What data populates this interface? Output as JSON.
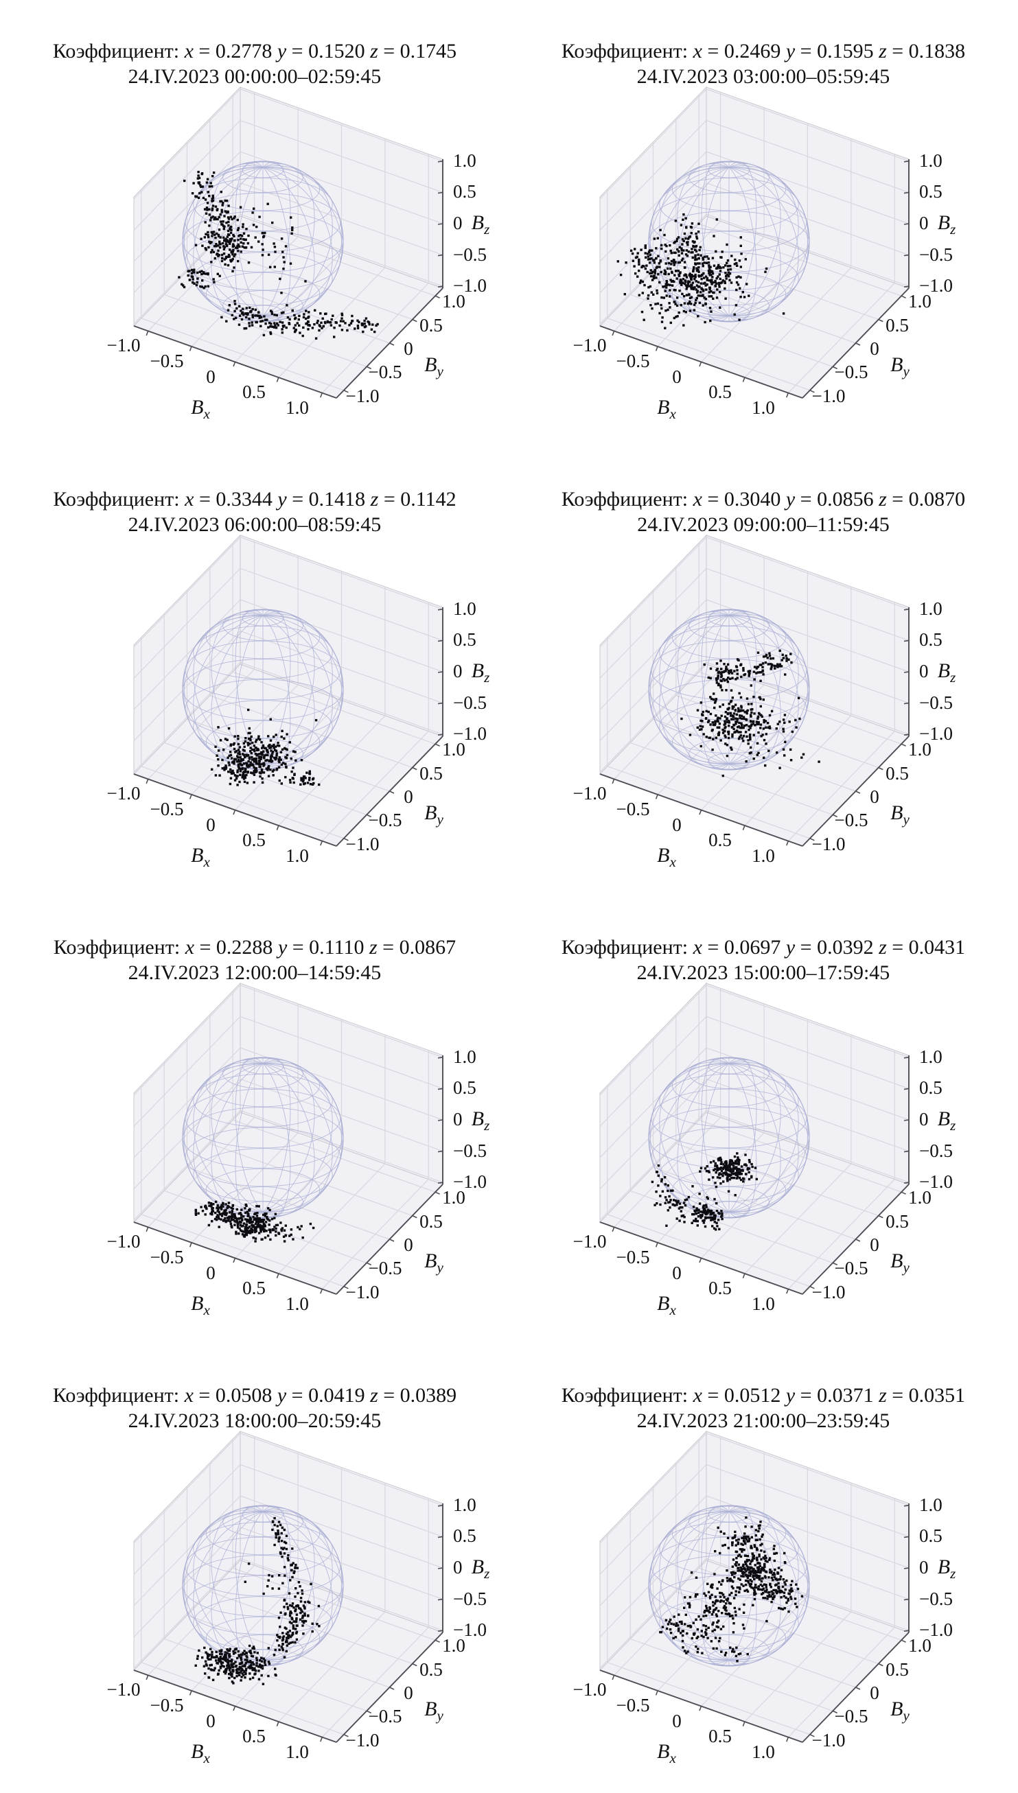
{
  "style": {
    "background": "#ffffff",
    "pane": "#f1f0f5",
    "grid": "#d8d7de",
    "edge": "#c9c8d0",
    "spine": "#4d4d55",
    "sphere_wire": "#aeb3d6",
    "sphere_limb": "#9ba1c9",
    "point": "#0b0b10",
    "text": "#111111"
  },
  "axes": {
    "tick_labels": [
      "−1.0",
      "−0.5",
      "0",
      "0.5",
      "1.0"
    ],
    "tick_values": [
      -1,
      -0.5,
      0,
      0.5,
      1
    ],
    "range": [
      -1,
      1
    ],
    "x_label": {
      "base": "B",
      "sub": "x"
    },
    "y_label": {
      "base": "B",
      "sub": "y"
    },
    "z_label": {
      "base": "B",
      "sub": "z"
    }
  },
  "sphere": {
    "radius": 1.0,
    "parallels_step_deg": 15,
    "meridians_step_deg": 20
  },
  "chart_data": [
    {
      "type": "scatter3d",
      "title": "Коэффициент: x = 0.2778 y = 0.1520 z = 0.1745",
      "subtitle": "24.IV.2023 00:00:00–02:59:45",
      "coefficients": {
        "x": 0.2778,
        "y": 0.152,
        "z": 0.1745
      },
      "date": "24.IV.2023",
      "time_start": "00:00:00",
      "time_end": "02:59:45",
      "xlim": [
        -1,
        1
      ],
      "ylim": [
        -1,
        1
      ],
      "zlim": [
        -1,
        1
      ],
      "clusters": [
        {
          "kind": "blob",
          "cx": 293,
          "cy": 263,
          "sx": 9,
          "sy": 11,
          "n": 25
        },
        {
          "kind": "chain",
          "path": [
            [
              300,
              292
            ],
            [
              338,
              330
            ],
            [
              331,
              374
            ]
          ],
          "spread": 13,
          "n": 110
        },
        {
          "kind": "blob",
          "cx": 325,
          "cy": 352,
          "sx": 17,
          "sy": 19,
          "n": 90
        },
        {
          "kind": "blob",
          "cx": 392,
          "cy": 362,
          "sx": 30,
          "sy": 24,
          "n": 45
        },
        {
          "kind": "blob",
          "cx": 286,
          "cy": 406,
          "sx": 15,
          "sy": 9,
          "n": 40
        },
        {
          "kind": "chain",
          "path": [
            [
              330,
              456
            ],
            [
              392,
              468
            ],
            [
              455,
              472
            ],
            [
              505,
              469
            ]
          ],
          "spread": 9,
          "n": 170
        },
        {
          "kind": "blob",
          "cx": 527,
          "cy": 471,
          "sx": 14,
          "sy": 6,
          "n": 25
        }
      ]
    },
    {
      "type": "scatter3d",
      "title": "Коэффициент: x = 0.2469 y = 0.1595 z = 0.1838",
      "subtitle": "24.IV.2023 03:00:00–05:59:45",
      "coefficients": {
        "x": 0.2469,
        "y": 0.1595,
        "z": 0.1838
      },
      "date": "24.IV.2023",
      "time_start": "03:00:00",
      "time_end": "05:59:45",
      "xlim": [
        -1,
        1
      ],
      "ylim": [
        -1,
        1
      ],
      "zlim": [
        -1,
        1
      ],
      "clusters": [
        {
          "kind": "blob",
          "cx": 312,
          "cy": 412,
          "sx": 32,
          "sy": 26,
          "n": 240
        },
        {
          "kind": "blob",
          "cx": 360,
          "cy": 398,
          "sx": 24,
          "sy": 20,
          "n": 120
        },
        {
          "kind": "chain",
          "path": [
            [
              324,
              328
            ],
            [
              318,
              372
            ]
          ],
          "spread": 9,
          "n": 50
        },
        {
          "kind": "blob",
          "cx": 330,
          "cy": 400,
          "sx": 52,
          "sy": 36,
          "n": 70
        },
        {
          "kind": "blob",
          "cx": 267,
          "cy": 372,
          "sx": 11,
          "sy": 9,
          "n": 30
        }
      ]
    },
    {
      "type": "scatter3d",
      "title": "Коэффициент: x = 0.3344 y = 0.1418 z = 0.1142",
      "subtitle": "24.IV.2023 06:00:00–08:59:45",
      "coefficients": {
        "x": 0.3344,
        "y": 0.1418,
        "z": 0.1142
      },
      "date": "24.IV.2023",
      "time_start": "06:00:00",
      "time_end": "08:59:45",
      "xlim": [
        -1,
        1
      ],
      "ylim": [
        -1,
        1
      ],
      "zlim": [
        -1,
        1
      ],
      "clusters": [
        {
          "kind": "blob",
          "cx": 372,
          "cy": 449,
          "sx": 25,
          "sy": 15,
          "n": 260
        },
        {
          "kind": "blob",
          "cx": 356,
          "cy": 470,
          "sx": 19,
          "sy": 9,
          "n": 80
        },
        {
          "kind": "blob",
          "cx": 443,
          "cy": 481,
          "sx": 11,
          "sy": 6,
          "n": 35
        },
        {
          "kind": "blob",
          "cx": 380,
          "cy": 400,
          "sx": 40,
          "sy": 35,
          "n": 7
        }
      ]
    },
    {
      "type": "scatter3d",
      "title": "Коэффициент: x = 0.3040 y = 0.0856 z = 0.0870",
      "subtitle": "24.IV.2023 09:00:00–11:59:45",
      "coefficients": {
        "x": 0.304,
        "y": 0.0856,
        "z": 0.087
      },
      "date": "24.IV.2023",
      "time_start": "09:00:00",
      "time_end": "11:59:45",
      "xlim": [
        -1,
        1
      ],
      "ylim": [
        -1,
        1
      ],
      "zlim": [
        -1,
        1
      ],
      "clusters": [
        {
          "kind": "blob",
          "cx": 378,
          "cy": 330,
          "sx": 15,
          "sy": 11,
          "n": 70
        },
        {
          "kind": "chain",
          "path": [
            [
              414,
              330
            ],
            [
              437,
              314
            ],
            [
              462,
              306
            ]
          ],
          "spread": 8,
          "n": 60
        },
        {
          "kind": "blob",
          "cx": 392,
          "cy": 398,
          "sx": 24,
          "sy": 17,
          "n": 210
        },
        {
          "kind": "blob",
          "cx": 412,
          "cy": 402,
          "sx": 44,
          "sy": 28,
          "n": 60
        },
        {
          "kind": "blob",
          "cx": 462,
          "cy": 446,
          "sx": 28,
          "sy": 13,
          "n": 14
        }
      ]
    },
    {
      "type": "scatter3d",
      "title": "Коэффициент: x = 0.2288 y = 0.1110 z = 0.0867",
      "subtitle": "24.IV.2023 12:00:00–14:59:45",
      "coefficients": {
        "x": 0.2288,
        "y": 0.111,
        "z": 0.0867
      },
      "date": "24.IV.2023",
      "time_start": "12:00:00",
      "time_end": "14:59:45",
      "xlim": [
        -1,
        1
      ],
      "ylim": [
        -1,
        1
      ],
      "zlim": [
        -1,
        1
      ],
      "clusters": [
        {
          "kind": "chain",
          "path": [
            [
              312,
              463
            ],
            [
              352,
              471
            ],
            [
              392,
              477
            ]
          ],
          "spread": 10,
          "n": 230
        },
        {
          "kind": "blob",
          "cx": 372,
          "cy": 486,
          "sx": 17,
          "sy": 8,
          "n": 60
        },
        {
          "kind": "blob",
          "cx": 418,
          "cy": 489,
          "sx": 18,
          "sy": 7,
          "n": 30
        },
        {
          "kind": "blob",
          "cx": 296,
          "cy": 458,
          "sx": 9,
          "sy": 6,
          "n": 15
        }
      ]
    },
    {
      "type": "scatter3d",
      "title": "Коэффициент: x = 0.0697 y = 0.0392 z = 0.0431",
      "subtitle": "24.IV.2023 15:00:00–17:59:45",
      "coefficients": {
        "x": 0.0697,
        "y": 0.0392,
        "z": 0.0431
      },
      "date": "24.IV.2023",
      "time_start": "15:00:00",
      "time_end": "17:59:45",
      "xlim": [
        -1,
        1
      ],
      "ylim": [
        -1,
        1
      ],
      "zlim": [
        -1,
        1
      ],
      "clusters": [
        {
          "kind": "blob",
          "cx": 384,
          "cy": 397,
          "sx": 16,
          "sy": 9,
          "n": 170
        },
        {
          "kind": "chain",
          "path": [
            [
              277,
              406
            ],
            [
              292,
              441
            ],
            [
              326,
              462
            ],
            [
              362,
              468
            ]
          ],
          "spread": 8,
          "n": 70
        },
        {
          "kind": "blob",
          "cx": 354,
          "cy": 466,
          "sx": 13,
          "sy": 8,
          "n": 55
        },
        {
          "kind": "blob",
          "cx": 340,
          "cy": 446,
          "sx": 28,
          "sy": 16,
          "n": 30
        }
      ]
    },
    {
      "type": "scatter3d",
      "title": "Коэффициент: x = 0.0508 y = 0.0419 z = 0.0389",
      "subtitle": "24.IV.2023 18:00:00–20:59:45",
      "coefficients": {
        "x": 0.0508,
        "y": 0.0419,
        "z": 0.0389
      },
      "date": "24.IV.2023",
      "time_start": "18:00:00",
      "time_end": "20:59:45",
      "xlim": [
        -1,
        1
      ],
      "ylim": [
        -1,
        1
      ],
      "zlim": [
        -1,
        1
      ],
      "clusters": [
        {
          "kind": "chain",
          "path": [
            [
              401,
              261
            ],
            [
              409,
              291
            ],
            [
              421,
              316
            ],
            [
              429,
              346
            ]
          ],
          "spread": 6,
          "n": 55
        },
        {
          "kind": "blob",
          "cx": 431,
          "cy": 391,
          "sx": 13,
          "sy": 17,
          "n": 90
        },
        {
          "kind": "chain",
          "path": [
            [
              423,
              421
            ],
            [
              411,
              441
            ]
          ],
          "spread": 7,
          "n": 40
        },
        {
          "kind": "chain",
          "path": [
            [
              302,
              456
            ],
            [
              347,
              463
            ],
            [
              392,
              468
            ]
          ],
          "spread": 11,
          "n": 200
        },
        {
          "kind": "blob",
          "cx": 332,
          "cy": 473,
          "sx": 20,
          "sy": 9,
          "n": 60
        },
        {
          "kind": "blob",
          "cx": 386,
          "cy": 346,
          "sx": 16,
          "sy": 18,
          "n": 10
        }
      ]
    },
    {
      "type": "scatter3d",
      "title": "Коэффициент: x = 0.0512 y = 0.0371 z = 0.0351",
      "subtitle": "24.IV.2023 21:00:00–23:59:45",
      "coefficients": {
        "x": 0.0512,
        "y": 0.0371,
        "z": 0.0351
      },
      "date": "24.IV.2023",
      "time_start": "21:00:00",
      "time_end": "23:59:45",
      "xlim": [
        -1,
        1
      ],
      "ylim": [
        -1,
        1
      ],
      "zlim": [
        -1,
        1
      ],
      "clusters": [
        {
          "kind": "blob",
          "cx": 406,
          "cy": 285,
          "sx": 18,
          "sy": 12,
          "n": 80
        },
        {
          "kind": "blob",
          "cx": 420,
          "cy": 331,
          "sx": 19,
          "sy": 15,
          "n": 220
        },
        {
          "kind": "blob",
          "cx": 458,
          "cy": 360,
          "sx": 15,
          "sy": 11,
          "n": 80
        },
        {
          "kind": "blob",
          "cx": 368,
          "cy": 378,
          "sx": 26,
          "sy": 17,
          "n": 110
        },
        {
          "kind": "blob",
          "cx": 341,
          "cy": 420,
          "sx": 21,
          "sy": 15,
          "n": 55
        },
        {
          "kind": "blob",
          "cx": 388,
          "cy": 449,
          "sx": 13,
          "sy": 7,
          "n": 12
        },
        {
          "kind": "blob",
          "cx": 306,
          "cy": 408,
          "sx": 12,
          "sy": 9,
          "n": 25
        }
      ]
    }
  ]
}
